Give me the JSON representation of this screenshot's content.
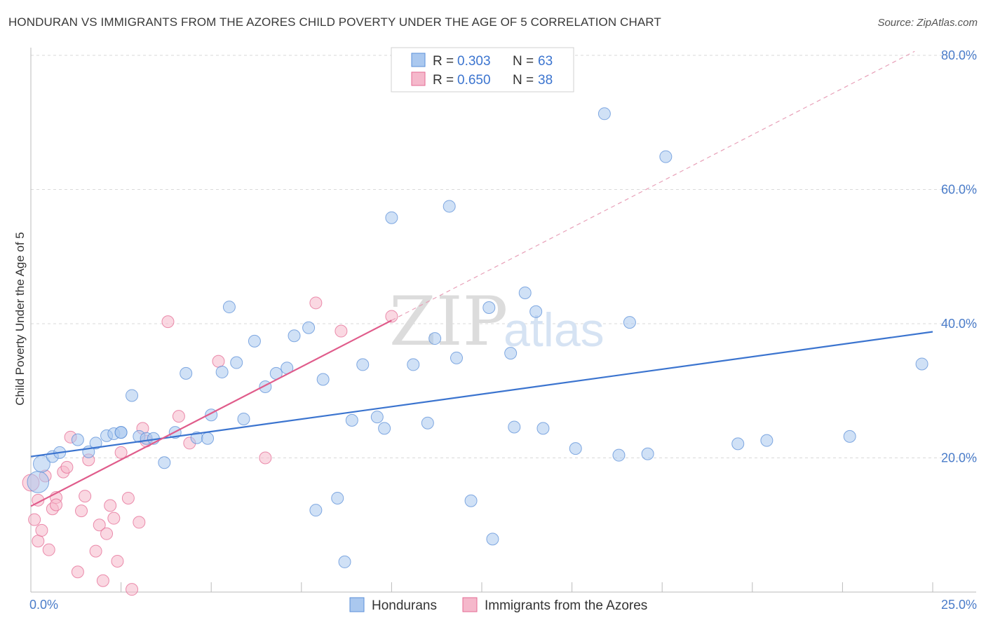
{
  "header": {
    "title": "HONDURAN VS IMMIGRANTS FROM THE AZORES CHILD POVERTY UNDER THE AGE OF 5 CORRELATION CHART",
    "source": "Source: ZipAtlas.com"
  },
  "watermark": {
    "zip": "ZIP",
    "atlas": "atlas"
  },
  "colors": {
    "blue": "#5b8fd8",
    "blue_fill": "#aac8ef",
    "pink": "#e46a93",
    "pink_fill": "#f5b8cb",
    "grid": "#d9d9d9",
    "axis_label": "#4a7cc9"
  },
  "legend": {
    "rows": [
      {
        "r_label": "R = ",
        "r_value": "0.303",
        "n_label": "N = ",
        "n_value": "63"
      },
      {
        "r_label": "R = ",
        "r_value": "0.650",
        "n_label": "N = ",
        "n_value": "38"
      }
    ]
  },
  "chart_data": {
    "type": "scatter",
    "title": "HONDURAN VS IMMIGRANTS FROM THE AZORES CHILD POVERTY UNDER THE AGE OF 5 CORRELATION CHART",
    "xlabel": "",
    "ylabel": "Child Poverty Under the Age of 5",
    "xlim": [
      0,
      25
    ],
    "ylim": [
      0,
      80
    ],
    "x_tick_labels": [
      "0.0%",
      "25.0%"
    ],
    "y_ticks": [
      20,
      40,
      60,
      80
    ],
    "y_tick_labels": [
      "20.0%",
      "40.0%",
      "60.0%",
      "80.0%"
    ],
    "grid": true,
    "legend_position": "bottom",
    "series": [
      {
        "name": "Hondurans",
        "r": 0.303,
        "n": 63,
        "trend": {
          "x": [
            0,
            25
          ],
          "y": [
            20.2,
            38.8
          ]
        },
        "points": [
          [
            0.2,
            16.4,
            1.8
          ],
          [
            0.3,
            19.1,
            1.4
          ],
          [
            0.6,
            20.2,
            1.0
          ],
          [
            0.8,
            20.8,
            1.0
          ],
          [
            1.3,
            22.7,
            1.0
          ],
          [
            1.6,
            20.9,
            1.0
          ],
          [
            1.8,
            22.2,
            1.0
          ],
          [
            2.1,
            23.3,
            1.0
          ],
          [
            2.3,
            23.6,
            1.0
          ],
          [
            2.5,
            23.8,
            1.0
          ],
          [
            2.8,
            29.3,
            1.0
          ],
          [
            3.0,
            23.2,
            1.0
          ],
          [
            3.2,
            22.9,
            1.0
          ],
          [
            3.4,
            22.9,
            1.0
          ],
          [
            3.7,
            19.3,
            1.0
          ],
          [
            4.0,
            23.8,
            1.0
          ],
          [
            4.3,
            32.6,
            1.0
          ],
          [
            4.6,
            23.0,
            1.0
          ],
          [
            4.9,
            22.9,
            1.0
          ],
          [
            5.0,
            26.4,
            1.0
          ],
          [
            5.3,
            32.8,
            1.0
          ],
          [
            5.5,
            42.5,
            1.0
          ],
          [
            5.7,
            34.2,
            1.0
          ],
          [
            5.9,
            25.8,
            1.0
          ],
          [
            6.2,
            37.4,
            1.0
          ],
          [
            6.5,
            30.6,
            1.0
          ],
          [
            6.8,
            32.6,
            1.0
          ],
          [
            7.1,
            33.4,
            1.0
          ],
          [
            7.3,
            38.2,
            1.0
          ],
          [
            7.7,
            39.4,
            1.0
          ],
          [
            7.9,
            12.2,
            1.0
          ],
          [
            8.1,
            31.7,
            1.0
          ],
          [
            8.5,
            14.0,
            1.0
          ],
          [
            8.7,
            4.5,
            1.0
          ],
          [
            8.9,
            25.6,
            1.0
          ],
          [
            9.2,
            33.9,
            1.0
          ],
          [
            9.6,
            26.1,
            1.0
          ],
          [
            9.8,
            24.4,
            1.0
          ],
          [
            10.0,
            55.8,
            1.0
          ],
          [
            10.6,
            33.9,
            1.0
          ],
          [
            11.0,
            25.2,
            1.0
          ],
          [
            11.2,
            37.8,
            1.0
          ],
          [
            11.6,
            57.5,
            1.0
          ],
          [
            11.8,
            34.9,
            1.0
          ],
          [
            12.2,
            13.6,
            1.0
          ],
          [
            12.7,
            42.4,
            1.0
          ],
          [
            12.8,
            7.9,
            1.0
          ],
          [
            13.3,
            35.6,
            1.0
          ],
          [
            13.4,
            24.6,
            1.0
          ],
          [
            13.7,
            44.6,
            1.0
          ],
          [
            14.0,
            41.8,
            1.0
          ],
          [
            14.2,
            24.4,
            1.0
          ],
          [
            15.1,
            21.4,
            1.0
          ],
          [
            15.9,
            71.3,
            1.0
          ],
          [
            16.3,
            20.4,
            1.0
          ],
          [
            16.6,
            40.2,
            1.0
          ],
          [
            17.1,
            20.6,
            1.0
          ],
          [
            17.6,
            64.9,
            1.0
          ],
          [
            19.6,
            22.1,
            1.0
          ],
          [
            20.4,
            22.6,
            1.0
          ],
          [
            22.7,
            23.2,
            1.0
          ],
          [
            24.7,
            34.0,
            1.0
          ],
          [
            2.5,
            23.8,
            1.0
          ]
        ]
      },
      {
        "name": "Immigrants from the Azores",
        "r": 0.65,
        "n": 38,
        "trend": {
          "x": [
            0,
            10
          ],
          "y": [
            12.8,
            40.5
          ],
          "ext_x": [
            10,
            24.5
          ],
          "ext_y": [
            40.5,
            80.6
          ]
        },
        "points": [
          [
            0.0,
            16.3,
            1.4
          ],
          [
            0.1,
            10.8,
            1.0
          ],
          [
            0.2,
            13.7,
            1.0
          ],
          [
            0.2,
            7.6,
            1.0
          ],
          [
            0.3,
            9.2,
            1.0
          ],
          [
            0.4,
            17.3,
            1.0
          ],
          [
            0.5,
            6.3,
            1.0
          ],
          [
            0.6,
            12.4,
            1.0
          ],
          [
            0.7,
            14.1,
            1.0
          ],
          [
            0.7,
            13.0,
            1.0
          ],
          [
            0.9,
            17.9,
            1.0
          ],
          [
            1.0,
            18.6,
            1.0
          ],
          [
            1.1,
            23.1,
            1.0
          ],
          [
            1.3,
            3.0,
            1.0
          ],
          [
            1.4,
            12.1,
            1.0
          ],
          [
            1.5,
            14.3,
            1.0
          ],
          [
            1.6,
            19.7,
            1.0
          ],
          [
            1.8,
            6.1,
            1.0
          ],
          [
            1.9,
            10.0,
            1.0
          ],
          [
            2.0,
            1.7,
            1.0
          ],
          [
            2.1,
            8.7,
            1.0
          ],
          [
            2.2,
            12.9,
            1.0
          ],
          [
            2.3,
            11.0,
            1.0
          ],
          [
            2.4,
            4.6,
            1.0
          ],
          [
            2.5,
            20.8,
            1.0
          ],
          [
            2.7,
            14.0,
            1.0
          ],
          [
            2.8,
            0.4,
            1.0
          ],
          [
            3.0,
            10.4,
            1.0
          ],
          [
            3.1,
            24.4,
            1.0
          ],
          [
            3.2,
            22.5,
            1.0
          ],
          [
            3.8,
            40.3,
            1.0
          ],
          [
            4.1,
            26.2,
            1.0
          ],
          [
            4.4,
            22.2,
            1.0
          ],
          [
            5.2,
            34.4,
            1.0
          ],
          [
            6.5,
            20.0,
            1.0
          ],
          [
            7.9,
            43.1,
            1.0
          ],
          [
            8.6,
            38.9,
            1.0
          ],
          [
            10.0,
            41.1,
            1.0
          ]
        ]
      }
    ]
  },
  "bottom_legend": {
    "items": [
      {
        "label": "Hondurans"
      },
      {
        "label": "Immigrants from the Azores"
      }
    ]
  }
}
